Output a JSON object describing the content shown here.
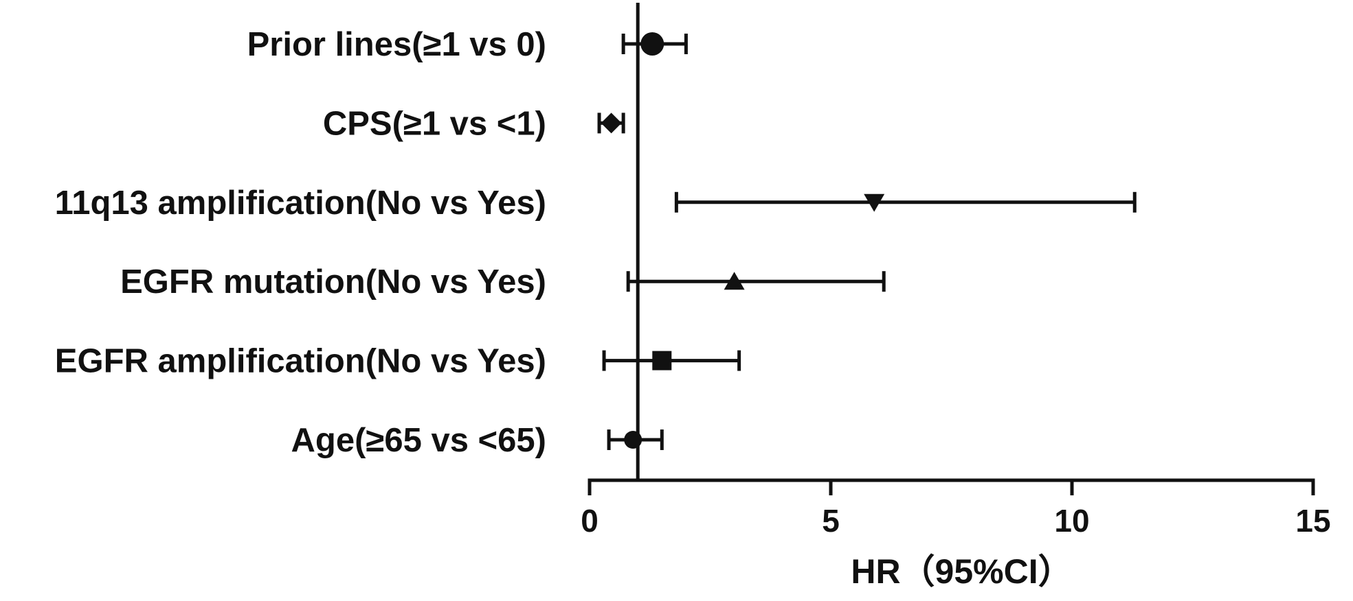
{
  "chart_data": {
    "type": "forest",
    "title": "",
    "xlabel": "HR（95%CI）",
    "ylabel": "",
    "xlim": [
      0,
      15
    ],
    "xticks": [
      0,
      5,
      10,
      15
    ],
    "reference_line": 1,
    "grid": false,
    "legend": "none",
    "color": "#111111",
    "rows": [
      {
        "label": "Prior lines(≥1 vs 0)",
        "hr": 1.3,
        "lower": 0.7,
        "upper": 2.0,
        "marker": "circle"
      },
      {
        "label": "CPS(≥1 vs <1)",
        "hr": 0.45,
        "lower": 0.2,
        "upper": 0.7,
        "marker": "diamond"
      },
      {
        "label": "11q13 amplification(No vs Yes)",
        "hr": 5.9,
        "lower": 1.8,
        "upper": 11.3,
        "marker": "triangle-down"
      },
      {
        "label": "EGFR mutation(No vs Yes)",
        "hr": 3.0,
        "lower": 0.8,
        "upper": 6.1,
        "marker": "triangle-up"
      },
      {
        "label": "EGFR amplification(No vs Yes)",
        "hr": 1.5,
        "lower": 0.3,
        "upper": 3.1,
        "marker": "square"
      },
      {
        "label": "Age(≥65 vs <65)",
        "hr": 0.9,
        "lower": 0.4,
        "upper": 1.5,
        "marker": "circle"
      }
    ]
  }
}
